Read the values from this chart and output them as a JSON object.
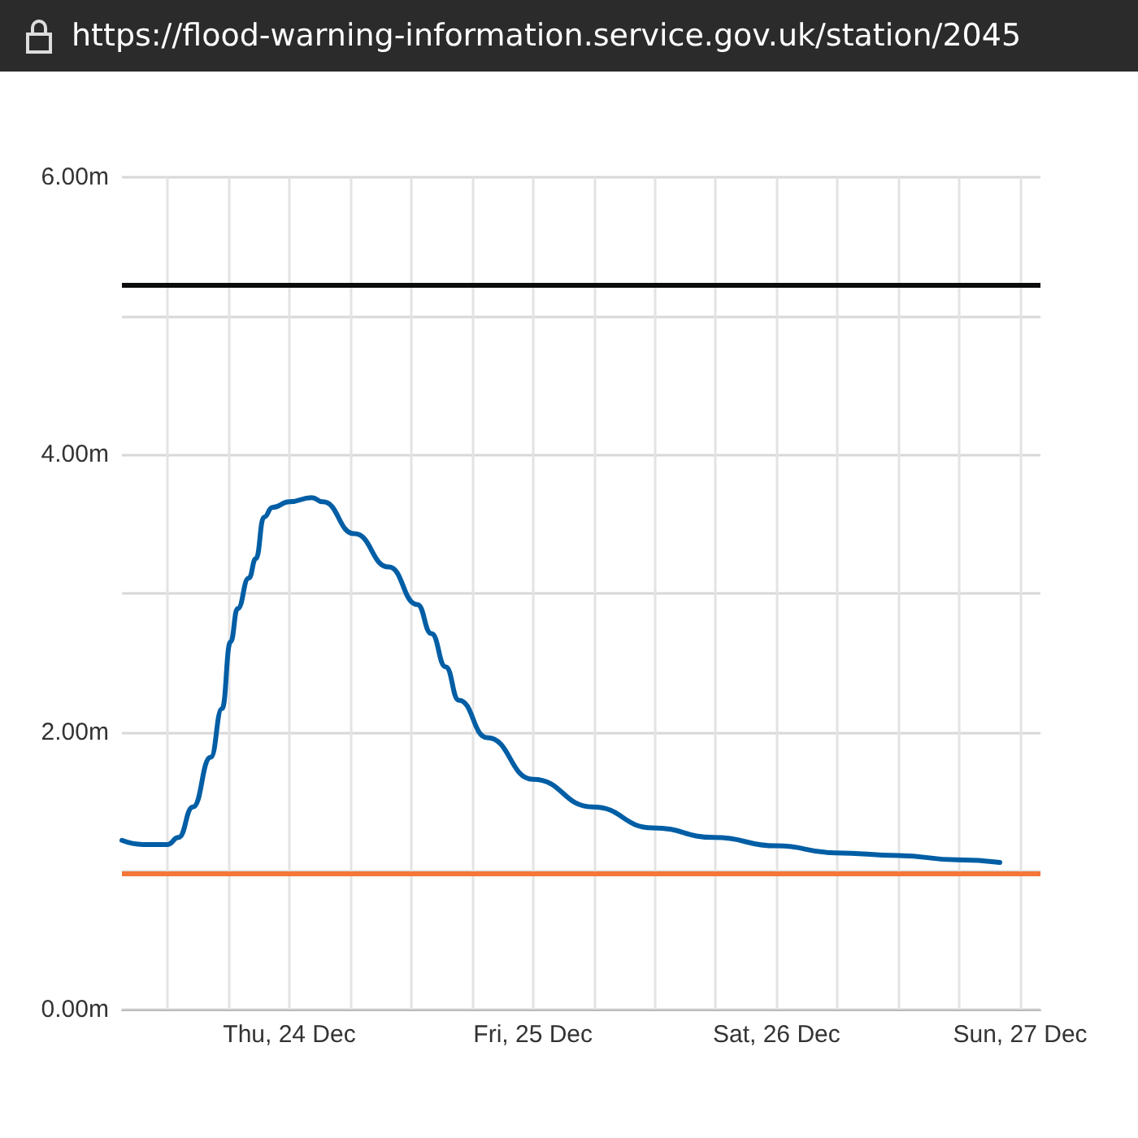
{
  "chart_data": {
    "type": "line",
    "annotations": [
      "https://flood-warning-information.service.gov.uk/station/2045"
    ],
    "x": [
      "--12-23T07:30",
      "--12-23T09:36",
      "--12-23T12:00",
      "--12-23T13:04",
      "--12-23T14:30",
      "--12-23T16:15",
      "--12-23T17:22",
      "--12-23T18:12",
      "--12-23T18:54",
      "--12-23T20:00",
      "--12-23T20:42",
      "--12-23T21:30",
      "--12-23T22:20",
      "--12-24T00:00",
      "--12-24T02:12",
      "--12-24T03:18",
      "--12-24T06:24",
      "--12-24T09:48",
      "--12-24T12:36",
      "--12-24T14:00",
      "--12-24T15:24",
      "--12-24T16:42",
      "--12-24T19:30",
      "--12-25T00:00",
      "--12-25T05:54",
      "--12-25T11:48",
      "--12-25T17:54",
      "--12-26T00:00",
      "--12-26T05:48",
      "--12-26T12:00",
      "--12-26T17:48",
      "--12-26T22:00"
    ],
    "series": [
      {
        "color": "#005ea5",
        "values": [
          1.22,
          1.19,
          1.19,
          1.24,
          1.46,
          1.82,
          2.17,
          2.65,
          2.89,
          3.11,
          3.25,
          3.55,
          3.62,
          3.66,
          3.69,
          3.66,
          3.43,
          3.19,
          2.92,
          2.71,
          2.47,
          2.23,
          1.96,
          1.66,
          1.46,
          1.31,
          1.24,
          1.18,
          1.13,
          1.11,
          1.08,
          1.06
        ]
      }
    ],
    "xlim": [
      "--12-23T07:30",
      "--12-27T02:00"
    ],
    "xticks": [
      {
        "value": "--12-23T12:00",
        "label": null
      },
      {
        "value": "--12-23T18:00",
        "label": null
      },
      {
        "value": "--12-24T00:00",
        "label": "Thu, 24 Dec"
      },
      {
        "value": "--12-24T06:00",
        "label": null
      },
      {
        "value": "--12-24T12:00",
        "label": null
      },
      {
        "value": "--12-24T18:00",
        "label": null
      },
      {
        "value": "--12-25T00:00",
        "label": "Fri, 25 Dec"
      },
      {
        "value": "--12-25T06:00",
        "label": null
      },
      {
        "value": "--12-25T12:00",
        "label": null
      },
      {
        "value": "--12-25T18:00",
        "label": null
      },
      {
        "value": "--12-26T00:00",
        "label": "Sat, 26 Dec"
      },
      {
        "value": "--12-26T06:00",
        "label": null
      },
      {
        "value": "--12-26T12:00",
        "label": null
      },
      {
        "value": "--12-26T18:00",
        "label": null
      },
      {
        "value": "--12-27T00:00",
        "label": "Sun, 27 Dec"
      }
    ],
    "ylim": [
      0,
      6
    ],
    "yticks": [
      {
        "value": 0,
        "label": "0.00m"
      },
      {
        "value": 1,
        "label": null
      },
      {
        "value": 2,
        "label": "2.00m"
      },
      {
        "value": 3,
        "label": null
      },
      {
        "value": 4,
        "label": "4.00m"
      },
      {
        "value": 5,
        "label": null
      },
      {
        "value": 6,
        "label": "6.00m"
      }
    ],
    "ref_lines": [
      {
        "axis": "y",
        "value": 5.22,
        "color": "#0b0c0c"
      },
      {
        "axis": "y",
        "value": 0.98,
        "color": "#f47738"
      }
    ],
    "grid": true,
    "marker": "none"
  }
}
